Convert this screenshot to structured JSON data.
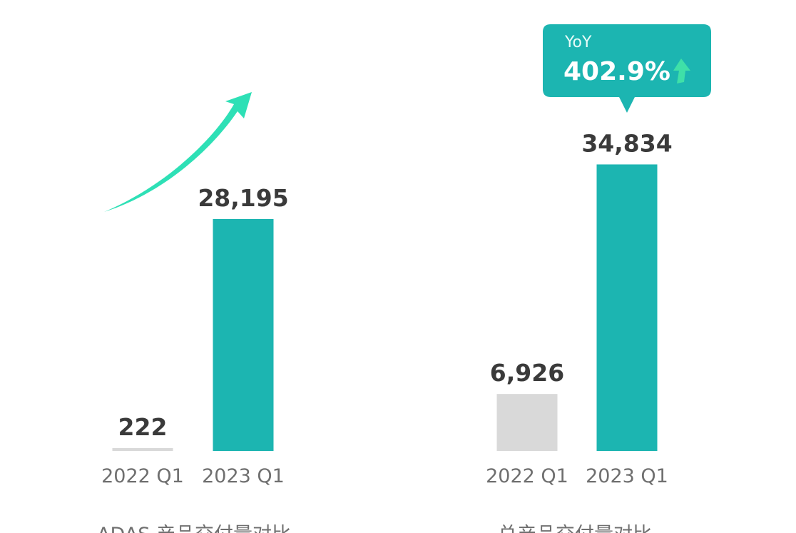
{
  "colors": {
    "accent": "#1cb5b1",
    "baseline": "#d9d9d9",
    "arrow": "#2ee0b6",
    "badge_bg": "#1cb5b1",
    "badge_arrow": "#3fe0a8"
  },
  "chart_data": [
    {
      "type": "bar",
      "caption": "ADAS 产品交付量对比",
      "categories": [
        "2022 Q1",
        "2023 Q1"
      ],
      "values": [
        222,
        28195
      ],
      "value_labels": [
        "222",
        "28,195"
      ],
      "ylim": [
        0,
        36000
      ],
      "grid": false,
      "decoration": "curved-growth-arrow"
    },
    {
      "type": "bar",
      "caption": "总产品交付量对比",
      "categories": [
        "2022 Q1",
        "2023 Q1"
      ],
      "values": [
        6926,
        34834
      ],
      "value_labels": [
        "6,926",
        "34,834"
      ],
      "ylim": [
        0,
        36000
      ],
      "grid": false,
      "callout": {
        "label": "YoY",
        "value": "402.9%",
        "icon": "up-arrow-icon"
      }
    }
  ]
}
